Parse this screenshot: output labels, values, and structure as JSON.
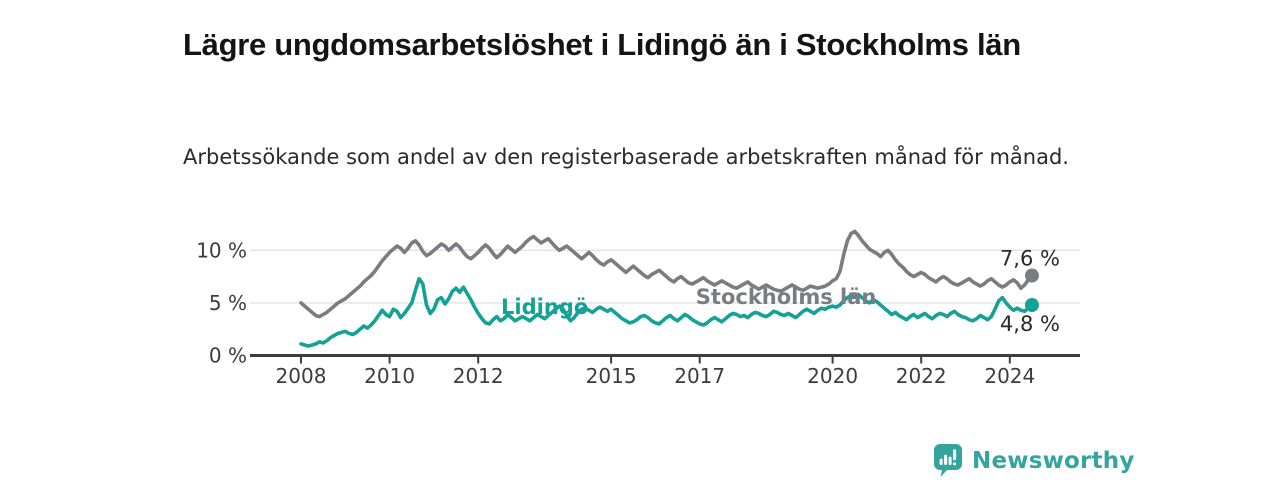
{
  "header": {},
  "footer": {
    "brand": "Newsworthy"
  },
  "colors": {
    "stockholm_line": "#7b7c81",
    "lidingo_line": "#14a196",
    "axis": "#3d3d3d",
    "tick_text": "#3d3d3d",
    "grid": "#e4e4e4",
    "end_label_text": "#2b2b2b",
    "title_text": "#141414",
    "subtitle_text": "#2a2a2a",
    "logo": "#35a39e"
  },
  "chart_data": {
    "type": "line",
    "title": "Lägre ungdomsarbetslöshet i Lidingö än i Stockholms län",
    "subtitle": "Arbetssökande som andel av den registerbaserade arbetskraften månad för månad.",
    "unit": "%",
    "x_start_year": 2008,
    "x_start_month": 1,
    "points_per_year": 12,
    "x_tick_years": [
      2008,
      2010,
      2012,
      2015,
      2017,
      2020,
      2022,
      2024
    ],
    "y_ticks": [
      {
        "value": 0,
        "label": "0 %"
      },
      {
        "value": 5,
        "label": "5 %"
      },
      {
        "value": 10,
        "label": "10 %"
      }
    ],
    "y_max": 12.5,
    "grid": "horizontal-only",
    "legend": "inline-series-labels",
    "series": [
      {
        "name": "Stockholms län",
        "color": "#7b7c81",
        "end_value": 7.6,
        "end_label": "7,6 %",
        "label_pos": {
          "year": 2018.95,
          "value": 5.55
        },
        "end_label_side": "above",
        "values": [
          5.0,
          4.7,
          4.4,
          4.1,
          3.8,
          3.7,
          3.9,
          4.1,
          4.4,
          4.7,
          5.0,
          5.2,
          5.4,
          5.7,
          6.0,
          6.3,
          6.6,
          7.0,
          7.3,
          7.6,
          8.0,
          8.5,
          9.0,
          9.4,
          9.8,
          10.1,
          10.4,
          10.2,
          9.8,
          10.2,
          10.7,
          10.9,
          10.5,
          9.9,
          9.5,
          9.7,
          10.0,
          10.3,
          10.6,
          10.4,
          10.0,
          10.3,
          10.6,
          10.3,
          9.8,
          9.4,
          9.2,
          9.5,
          9.8,
          10.2,
          10.5,
          10.2,
          9.7,
          9.3,
          9.6,
          10.0,
          10.4,
          10.1,
          9.8,
          10.1,
          10.4,
          10.8,
          11.1,
          11.3,
          11.0,
          10.7,
          10.9,
          11.1,
          10.7,
          10.3,
          10.0,
          10.2,
          10.4,
          10.1,
          9.8,
          9.5,
          9.2,
          9.5,
          9.8,
          9.5,
          9.1,
          8.8,
          8.6,
          8.9,
          9.1,
          8.8,
          8.5,
          8.2,
          7.9,
          8.2,
          8.5,
          8.2,
          7.9,
          7.6,
          7.4,
          7.7,
          7.9,
          8.1,
          7.8,
          7.5,
          7.2,
          7.0,
          7.3,
          7.5,
          7.2,
          6.9,
          6.8,
          7.0,
          7.2,
          7.4,
          7.1,
          6.9,
          6.7,
          6.9,
          7.1,
          6.9,
          6.7,
          6.5,
          6.4,
          6.6,
          6.8,
          7.0,
          6.7,
          6.5,
          6.3,
          6.5,
          6.7,
          6.5,
          6.3,
          6.2,
          6.1,
          6.3,
          6.5,
          6.7,
          6.5,
          6.3,
          6.2,
          6.4,
          6.6,
          6.5,
          6.4,
          6.5,
          6.6,
          6.8,
          7.1,
          7.3,
          8.0,
          9.6,
          10.9,
          11.6,
          11.8,
          11.4,
          10.9,
          10.5,
          10.1,
          9.9,
          9.7,
          9.4,
          9.8,
          10.0,
          9.6,
          9.1,
          8.7,
          8.4,
          8.0,
          7.7,
          7.5,
          7.7,
          7.9,
          7.7,
          7.4,
          7.2,
          7.0,
          7.3,
          7.5,
          7.3,
          7.0,
          6.8,
          6.7,
          6.9,
          7.1,
          7.3,
          7.0,
          6.8,
          6.6,
          6.8,
          7.1,
          7.3,
          7.0,
          6.7,
          6.5,
          6.7,
          7.0,
          7.2,
          6.9,
          6.4,
          6.7,
          7.2,
          7.6
        ]
      },
      {
        "name": "Lidingö",
        "color": "#14a196",
        "end_value": 4.8,
        "end_label": "4,8 %",
        "label_pos": {
          "year": 2013.5,
          "value": 4.62
        },
        "end_label_side": "below",
        "values": [
          1.1,
          1.0,
          0.9,
          1.0,
          1.1,
          1.3,
          1.2,
          1.4,
          1.7,
          1.9,
          2.1,
          2.2,
          2.3,
          2.1,
          2.0,
          2.2,
          2.5,
          2.8,
          2.6,
          2.9,
          3.3,
          3.8,
          4.3,
          3.9,
          3.7,
          4.4,
          4.2,
          3.6,
          4.0,
          4.5,
          5.0,
          6.2,
          7.3,
          6.8,
          4.8,
          4.0,
          4.4,
          5.3,
          5.5,
          4.9,
          5.4,
          6.1,
          6.4,
          6.0,
          6.5,
          5.9,
          5.3,
          4.6,
          4.0,
          3.5,
          3.1,
          3.0,
          3.4,
          3.7,
          3.3,
          3.5,
          3.9,
          3.6,
          3.3,
          3.5,
          3.7,
          3.5,
          3.3,
          3.6,
          3.9,
          3.7,
          3.5,
          3.8,
          4.1,
          4.4,
          4.7,
          4.4,
          3.8,
          3.3,
          3.6,
          4.1,
          4.4,
          4.5,
          4.3,
          4.1,
          4.4,
          4.6,
          4.4,
          4.2,
          4.4,
          4.1,
          3.8,
          3.5,
          3.3,
          3.1,
          3.2,
          3.4,
          3.7,
          3.8,
          3.6,
          3.3,
          3.1,
          3.0,
          3.3,
          3.6,
          3.8,
          3.5,
          3.3,
          3.6,
          3.9,
          3.7,
          3.4,
          3.2,
          3.0,
          2.9,
          3.1,
          3.4,
          3.6,
          3.4,
          3.2,
          3.5,
          3.8,
          4.0,
          3.9,
          3.7,
          3.8,
          3.6,
          3.9,
          4.1,
          4.0,
          3.8,
          3.7,
          3.9,
          4.2,
          4.1,
          3.9,
          3.8,
          4.0,
          3.8,
          3.6,
          3.9,
          4.2,
          4.4,
          4.2,
          4.0,
          4.3,
          4.5,
          4.4,
          4.6,
          4.7,
          4.6,
          4.8,
          5.2,
          5.5,
          5.7,
          5.5,
          5.8,
          5.5,
          5.2,
          5.0,
          5.3,
          5.1,
          4.8,
          4.5,
          4.2,
          3.9,
          4.1,
          3.8,
          3.6,
          3.4,
          3.7,
          3.9,
          3.6,
          3.8,
          4.0,
          3.7,
          3.5,
          3.8,
          4.0,
          3.9,
          3.7,
          4.0,
          4.2,
          3.9,
          3.7,
          3.6,
          3.4,
          3.3,
          3.5,
          3.8,
          3.6,
          3.4,
          3.7,
          4.4,
          5.2,
          5.5,
          5.0,
          4.6,
          4.3,
          4.5,
          4.3,
          4.2,
          4.5,
          4.8
        ]
      }
    ]
  }
}
